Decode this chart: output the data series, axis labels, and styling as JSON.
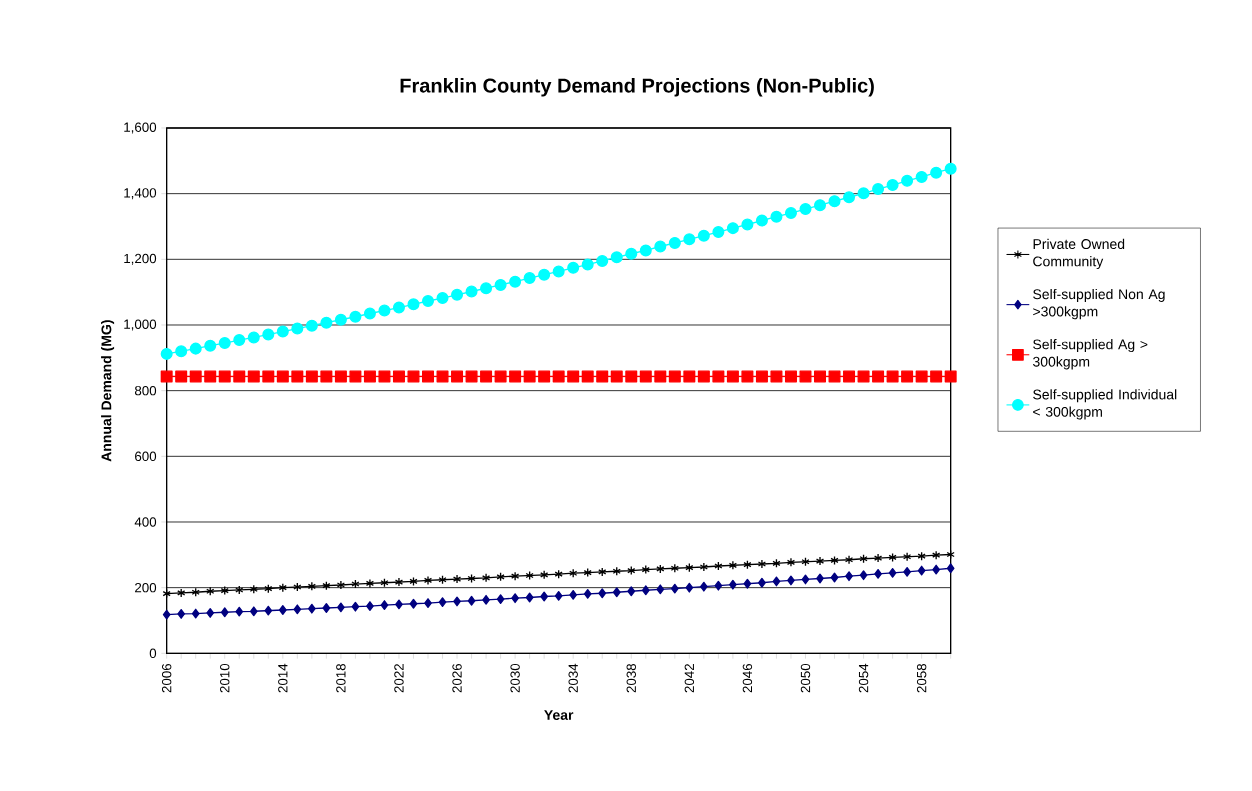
{
  "chart_data": {
    "type": "line",
    "title": "Franklin County Demand Projections (Non-Public)",
    "xlabel": "Year",
    "ylabel": "Annual Demand (MG)",
    "categories": [
      "2006",
      null,
      null,
      null,
      "2010",
      null,
      null,
      null,
      "2014",
      null,
      null,
      null,
      "2018",
      null,
      null,
      null,
      "2022",
      null,
      null,
      null,
      "2026",
      null,
      null,
      null,
      "2030",
      null,
      null,
      null,
      "2034",
      null,
      null,
      null,
      "2038",
      null,
      null,
      null,
      "2042",
      null,
      null,
      null,
      "2046",
      null,
      null,
      null,
      "2050",
      null,
      null,
      null,
      "2054",
      null,
      null,
      null,
      "2058",
      null,
      null
    ],
    "ylim": [
      0,
      1600
    ],
    "yticks": [
      0,
      200,
      400,
      600,
      800,
      {
        "value": 1000,
        "label": "1,000"
      },
      {
        "value": 1200,
        "label": "1,200"
      },
      {
        "value": 1400,
        "label": "1,400"
      },
      {
        "value": 1600,
        "label": "1,600"
      }
    ],
    "grid": "y",
    "legend": "right",
    "series": [
      {
        "name": "Private Owned Community",
        "color": "#000000",
        "marker": "cross",
        "values": [
          182,
          184,
          186,
          189,
          191,
          193,
          195,
          197,
          200,
          202,
          204,
          206,
          208,
          211,
          213,
          215,
          217,
          219,
          222,
          224,
          226,
          228,
          230,
          233,
          235,
          237,
          239,
          241,
          244,
          246,
          248,
          250,
          252,
          255,
          257,
          259,
          261,
          263,
          266,
          268,
          270,
          272,
          274,
          277,
          279,
          281,
          283,
          285,
          288,
          290,
          292,
          294,
          296,
          299,
          301
        ]
      },
      {
        "name": "Self-supplied Non Ag >300kgpm",
        "color": "#000080",
        "marker": "diamond",
        "values": [
          118,
          120,
          121,
          123,
          125,
          127,
          128,
          130,
          132,
          134,
          136,
          138,
          140,
          142,
          144,
          147,
          149,
          151,
          153,
          156,
          158,
          160,
          163,
          165,
          168,
          170,
          173,
          175,
          178,
          181,
          183,
          186,
          189,
          192,
          195,
          197,
          200,
          203,
          206,
          209,
          212,
          215,
          219,
          222,
          225,
          228,
          231,
          235,
          238,
          242,
          245,
          248,
          252,
          255,
          259
        ]
      },
      {
        "name": "Self-supplied Ag > 300kgpm",
        "color": "#ff0000",
        "marker": "square",
        "values": [
          843,
          843,
          843,
          843,
          843,
          843,
          843,
          843,
          843,
          843,
          843,
          843,
          843,
          843,
          843,
          843,
          843,
          843,
          843,
          843,
          843,
          843,
          843,
          843,
          843,
          843,
          843,
          843,
          843,
          843,
          843,
          843,
          843,
          843,
          843,
          843,
          843,
          843,
          843,
          843,
          843,
          843,
          843,
          843,
          843,
          843,
          843,
          843,
          843,
          843,
          843,
          843,
          843,
          843,
          843
        ]
      },
      {
        "name": "Self-supplied Individual < 300kgpm",
        "color": "#00ffff",
        "marker": "circle",
        "values": [
          912,
          920,
          928,
          937,
          945,
          954,
          962,
          971,
          980,
          989,
          998,
          1007,
          1016,
          1025,
          1035,
          1044,
          1053,
          1063,
          1073,
          1082,
          1092,
          1102,
          1112,
          1122,
          1132,
          1143,
          1153,
          1163,
          1174,
          1184,
          1195,
          1206,
          1217,
          1227,
          1239,
          1250,
          1261,
          1272,
          1283,
          1295,
          1306,
          1318,
          1330,
          1341,
          1353,
          1365,
          1377,
          1389,
          1401,
          1414,
          1426,
          1439,
          1451,
          1464,
          1476
        ]
      }
    ]
  }
}
